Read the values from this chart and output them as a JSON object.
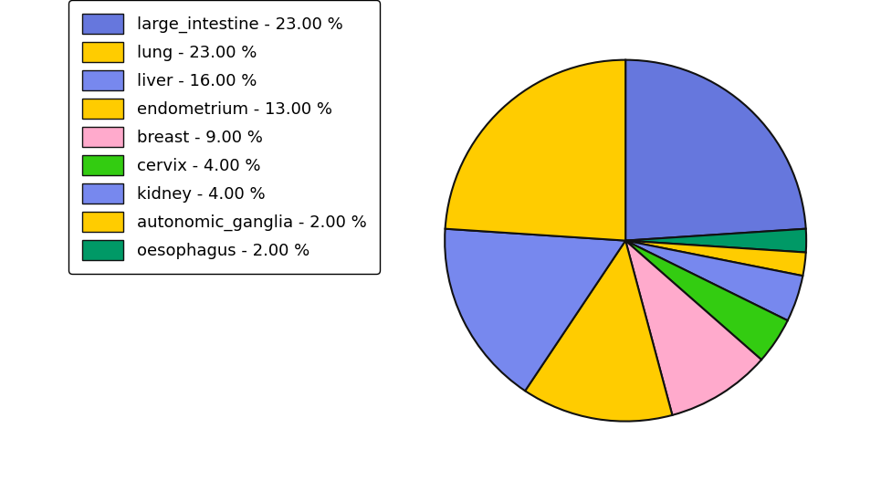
{
  "labels": [
    "large_intestine - 23.00 %",
    "lung - 23.00 %",
    "liver - 16.00 %",
    "endometrium - 13.00 %",
    "breast - 9.00 %",
    "cervix - 4.00 %",
    "kidney - 4.00 %",
    "autonomic_ganglia - 2.00 %",
    "oesophagus - 2.00 %"
  ],
  "values": [
    23,
    23,
    16,
    13,
    9,
    4,
    4,
    2,
    2
  ],
  "pie_order_labels": [
    "large_intestine",
    "oesophagus",
    "autonomic_ganglia",
    "kidney",
    "cervix",
    "breast",
    "endometrium",
    "liver",
    "lung"
  ],
  "pie_order_values": [
    23,
    2,
    2,
    4,
    4,
    9,
    13,
    16,
    23
  ],
  "pie_order_colors": [
    "#6677dd",
    "#009966",
    "#ffcc00",
    "#7788ee",
    "#33cc11",
    "#ffaacc",
    "#ffcc00",
    "#7788ee",
    "#ffcc00"
  ],
  "legend_colors": [
    "#6677dd",
    "#ffcc00",
    "#7788ee",
    "#ffcc00",
    "#ffaacc",
    "#33cc11",
    "#7788ee",
    "#ffcc00",
    "#009966"
  ],
  "startangle": 90,
  "counterclock": false,
  "background_color": "#ffffff",
  "legend_fontsize": 13,
  "edge_color": "#111111",
  "edge_width": 1.5
}
